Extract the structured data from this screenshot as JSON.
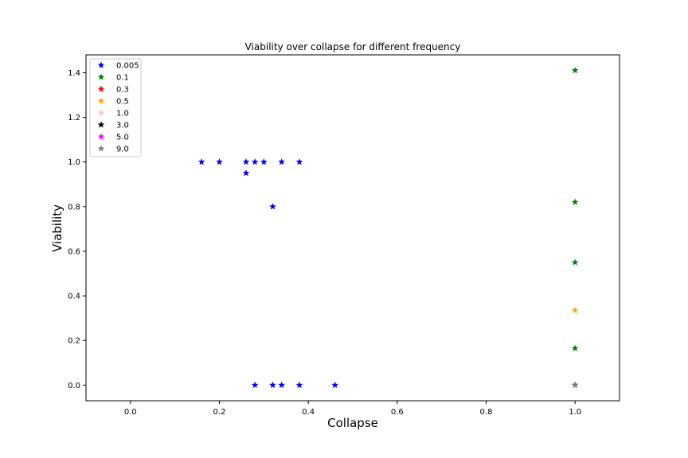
{
  "chart_data": {
    "type": "scatter",
    "title": "Viability over collapse for different frequency",
    "xlabel": "Collapse",
    "ylabel": "Viability",
    "xlim": [
      -0.1,
      1.1
    ],
    "ylim": [
      -0.07,
      1.48
    ],
    "xticks": [
      "0.0",
      "0.2",
      "0.4",
      "0.6",
      "0.8",
      "1.0"
    ],
    "yticks": [
      "0.0",
      "0.2",
      "0.4",
      "0.6",
      "0.8",
      "1.0",
      "1.2",
      "1.4"
    ],
    "grid": false,
    "legend_position": "top-left",
    "marker": "star",
    "series": [
      {
        "name": "0.005",
        "color": "#0000ff",
        "points": [
          [
            0.16,
            1.0
          ],
          [
            0.2,
            1.0
          ],
          [
            0.26,
            1.0
          ],
          [
            0.28,
            1.0
          ],
          [
            0.3,
            1.0
          ],
          [
            0.34,
            1.0
          ],
          [
            0.38,
            1.0
          ],
          [
            0.26,
            0.95
          ],
          [
            0.32,
            0.8
          ],
          [
            0.28,
            0.0
          ],
          [
            0.32,
            0.0
          ],
          [
            0.34,
            0.0
          ],
          [
            0.38,
            0.0
          ],
          [
            0.46,
            0.0
          ]
        ]
      },
      {
        "name": "0.1",
        "color": "#008000",
        "points": [
          [
            1.0,
            1.41
          ],
          [
            1.0,
            0.82
          ],
          [
            1.0,
            0.55
          ],
          [
            1.0,
            0.165
          ]
        ]
      },
      {
        "name": "0.3",
        "color": "#ff0000",
        "points": [
          [
            1.0,
            0.0
          ]
        ]
      },
      {
        "name": "0.5",
        "color": "#ffa500",
        "points": [
          [
            1.0,
            0.335
          ]
        ]
      },
      {
        "name": "1.0",
        "color": "#ffc0cb",
        "points": [
          [
            1.0,
            0.0
          ]
        ]
      },
      {
        "name": "3.0",
        "color": "#000000",
        "points": [
          [
            1.0,
            0.0
          ]
        ]
      },
      {
        "name": "5.0",
        "color": "#ff00ff",
        "points": [
          [
            1.0,
            0.0
          ]
        ]
      },
      {
        "name": "9.0",
        "color": "#808080",
        "points": [
          [
            1.0,
            0.0
          ]
        ]
      }
    ]
  }
}
